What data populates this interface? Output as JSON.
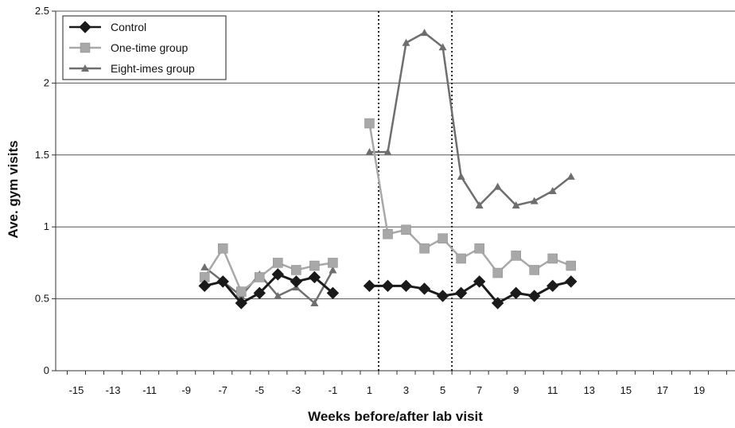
{
  "chart_data": {
    "type": "line",
    "xlabel": "Weeks before/after lab visit",
    "ylabel": "Ave. gym visits",
    "xlim": [
      -16,
      21
    ],
    "ylim": [
      0,
      2.5
    ],
    "xticks": [
      -15,
      -13,
      -11,
      -9,
      -7,
      -5,
      -3,
      -1,
      1,
      3,
      5,
      7,
      9,
      11,
      13,
      15,
      17,
      19
    ],
    "yticks": [
      0,
      0.5,
      1,
      1.5,
      2,
      2.5
    ],
    "ytick_labels": [
      "0",
      "0.5",
      "1",
      "1.5",
      "2",
      "2.5"
    ],
    "grid": "horizontal",
    "legend_position": "top-left",
    "vlines": [
      1.5,
      5.5
    ],
    "series": [
      {
        "name": "Control",
        "color": "#1a1a1a",
        "marker": "diamond",
        "segments": [
          {
            "x": [
              -8,
              -7,
              -6,
              -5,
              -4,
              -3,
              -2,
              -1
            ],
            "y": [
              0.59,
              0.62,
              0.47,
              0.54,
              0.67,
              0.62,
              0.65,
              0.54
            ]
          },
          {
            "x": [
              1,
              2,
              3,
              4,
              5,
              6,
              7,
              8,
              9,
              10,
              11,
              12
            ],
            "y": [
              0.59,
              0.59,
              0.59,
              0.57,
              0.52,
              0.54,
              0.62,
              0.47,
              0.54,
              0.52,
              0.59,
              0.62
            ]
          }
        ]
      },
      {
        "name": "One-time group",
        "color": "#a8a8a8",
        "marker": "square",
        "segments": [
          {
            "x": [
              -8,
              -7,
              -6,
              -5,
              -4,
              -3,
              -2,
              -1
            ],
            "y": [
              0.65,
              0.85,
              0.55,
              0.65,
              0.75,
              0.7,
              0.73,
              0.75
            ]
          },
          {
            "x": [
              1,
              2,
              3,
              4,
              5,
              6,
              7,
              8,
              9,
              10,
              11,
              12
            ],
            "y": [
              1.72,
              0.95,
              0.98,
              0.85,
              0.92,
              0.78,
              0.85,
              0.68,
              0.8,
              0.7,
              0.78,
              0.73
            ]
          }
        ]
      },
      {
        "name": "Eight-imes group",
        "color": "#6e6e6e",
        "marker": "triangle",
        "segments": [
          {
            "x": [
              -8,
              -7,
              -6,
              -5,
              -4,
              -3,
              -2,
              -1
            ],
            "y": [
              0.72,
              0.62,
              0.52,
              0.67,
              0.52,
              0.58,
              0.47,
              0.7
            ]
          },
          {
            "x": [
              1,
              2,
              3,
              4,
              5,
              6,
              7,
              8,
              9,
              10,
              11,
              12
            ],
            "y": [
              1.52,
              1.52,
              2.28,
              2.35,
              2.25,
              1.35,
              1.15,
              1.28,
              1.15,
              1.18,
              1.25,
              1.35
            ]
          }
        ]
      }
    ]
  }
}
